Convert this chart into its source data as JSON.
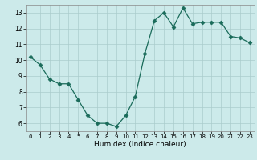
{
  "x": [
    0,
    1,
    2,
    3,
    4,
    5,
    6,
    7,
    8,
    9,
    10,
    11,
    12,
    13,
    14,
    15,
    16,
    17,
    18,
    19,
    20,
    21,
    22,
    23
  ],
  "y": [
    10.2,
    9.7,
    8.8,
    8.5,
    8.5,
    7.5,
    6.5,
    6.0,
    6.0,
    5.8,
    6.5,
    7.7,
    10.4,
    12.5,
    13.0,
    12.1,
    13.3,
    12.3,
    12.4,
    12.4,
    12.4,
    11.5,
    11.4,
    11.1
  ],
  "xlabel": "Humidex (Indice chaleur)",
  "xlim": [
    -0.5,
    23.5
  ],
  "ylim": [
    5.5,
    13.5
  ],
  "yticks": [
    6,
    7,
    8,
    9,
    10,
    11,
    12,
    13
  ],
  "xticks": [
    0,
    1,
    2,
    3,
    4,
    5,
    6,
    7,
    8,
    9,
    10,
    11,
    12,
    13,
    14,
    15,
    16,
    17,
    18,
    19,
    20,
    21,
    22,
    23
  ],
  "line_color": "#1a6b5a",
  "marker": "D",
  "marker_size": 2.5,
  "bg_color": "#cceaea",
  "grid_color": "#aacccc",
  "fig_bg": "#cceaea"
}
